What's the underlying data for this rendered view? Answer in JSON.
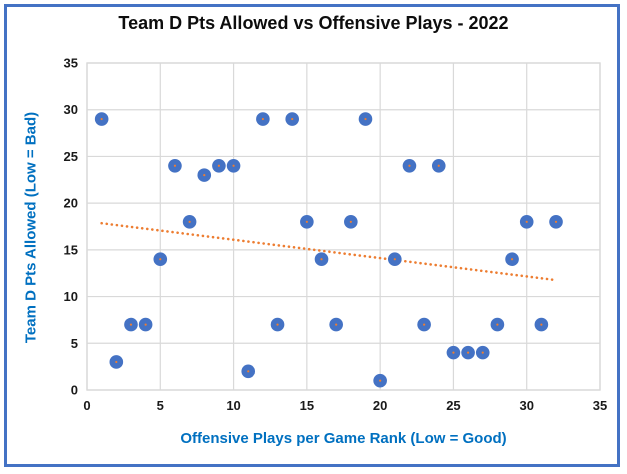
{
  "chart_title": "Team D Pts Allowed vs Offensive Plays - 2022",
  "chart_data": {
    "type": "scatter",
    "title": "Team D Pts Allowed vs Offensive Plays - 2022",
    "xlabel": "Offensive Plays per Game Rank (Low = Good)",
    "ylabel": "Team D Pts Allowed (Low = Bad)",
    "xlim": [
      0,
      35
    ],
    "ylim": [
      0,
      35
    ],
    "xticks": [
      0,
      5,
      10,
      15,
      20,
      25,
      30,
      35
    ],
    "yticks": [
      0,
      5,
      10,
      15,
      20,
      25,
      30,
      35
    ],
    "grid": true,
    "legend": false,
    "points": [
      [
        1,
        29
      ],
      [
        2,
        3
      ],
      [
        3,
        7
      ],
      [
        4,
        7
      ],
      [
        5,
        14
      ],
      [
        6,
        24
      ],
      [
        7,
        18
      ],
      [
        8,
        23
      ],
      [
        9,
        24
      ],
      [
        10,
        24
      ],
      [
        11,
        2
      ],
      [
        12,
        29
      ],
      [
        13,
        7
      ],
      [
        14,
        29
      ],
      [
        15,
        18
      ],
      [
        16,
        14
      ],
      [
        17,
        7
      ],
      [
        18,
        18
      ],
      [
        19,
        29
      ],
      [
        20,
        1
      ],
      [
        21,
        14
      ],
      [
        22,
        24
      ],
      [
        23,
        7
      ],
      [
        24,
        24
      ],
      [
        25,
        4
      ],
      [
        26,
        4
      ],
      [
        27,
        4
      ],
      [
        28,
        7
      ],
      [
        29,
        14
      ],
      [
        30,
        18
      ],
      [
        31,
        7
      ],
      [
        32,
        18
      ]
    ],
    "trendline": {
      "x1": 1,
      "y1": 17.85,
      "x2": 31.8,
      "y2": 11.8
    }
  },
  "colors": {
    "marker": "#4472C4",
    "marker_center": "#ED7D31",
    "trendline": "#ED7D31",
    "gridline": "#D9D9D9",
    "tick_label": "#1a1a1a",
    "axis_title": "#0070C0",
    "frame_border": "#4472C4",
    "background": "#ffffff"
  }
}
